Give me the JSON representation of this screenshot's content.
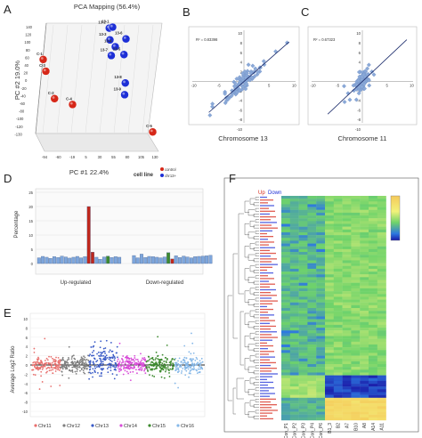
{
  "panels": {
    "A": {
      "letter": "A",
      "title": "PCA Mapping (56.4%)",
      "xlabel": "PC #1 22.4%",
      "ylabel": "PC #2 19.0%",
      "yticks": [
        "140",
        "120",
        "100",
        "80",
        "60",
        "40",
        "20",
        "0",
        "-20",
        "-40",
        "-60",
        "-80",
        "-100",
        "-120",
        "-130"
      ],
      "xticks": [
        "-94",
        "-60",
        "-19",
        "5",
        "30",
        "55",
        "80",
        "105",
        "130"
      ],
      "legend_title": "cell line",
      "legend_items": [
        {
          "label": "control",
          "color": "#d62718"
        },
        {
          "label": "chr13+",
          "color": "#1d2fd6"
        }
      ],
      "points": [
        {
          "label": "13-2",
          "group": 1,
          "x": 0.17,
          "y": 0.94
        },
        {
          "label": "13-1",
          "group": 1,
          "x": 0.22,
          "y": 0.95
        },
        {
          "label": "13-3",
          "group": 1,
          "x": 0.18,
          "y": 0.82
        },
        {
          "label": "13-6",
          "group": 1,
          "x": 0.42,
          "y": 0.83
        },
        {
          "label": "13-4",
          "group": 1,
          "x": 0.26,
          "y": 0.75
        },
        {
          "label": "13-7",
          "group": 1,
          "x": 0.2,
          "y": 0.66
        },
        {
          "label": "13-5",
          "group": 1,
          "x": 0.39,
          "y": 0.67
        },
        {
          "label": "13-8",
          "group": 1,
          "x": 0.41,
          "y": 0.38
        },
        {
          "label": "13-9",
          "group": 1,
          "x": 0.4,
          "y": 0.26
        },
        {
          "label": "C-1",
          "group": 0,
          "x": -0.82,
          "y": 0.62
        },
        {
          "label": "C-3",
          "group": 0,
          "x": -0.78,
          "y": 0.5
        },
        {
          "label": "C-2",
          "group": 0,
          "x": -0.65,
          "y": 0.22
        },
        {
          "label": "C-4",
          "group": 0,
          "x": -0.38,
          "y": 0.16
        },
        {
          "label": "C-5",
          "group": 0,
          "x": 0.82,
          "y": -0.12
        }
      ]
    },
    "B": {
      "letter": "B",
      "caption": "Chromosome 13",
      "r2": "R² = 0.83398",
      "xticks": [
        "-10",
        "-5",
        "0",
        "5",
        "10"
      ],
      "yticks": [
        "10",
        "8",
        "6",
        "4",
        "2",
        "0",
        "-2",
        "-4",
        "-6",
        "-8",
        "-10"
      ]
    },
    "C": {
      "letter": "C",
      "caption": "Chromosome 11",
      "r2": "R² = 0.67323",
      "xticks": [
        "-10",
        "-5",
        "0",
        "5",
        "10"
      ],
      "yticks": [
        "10",
        "8",
        "6",
        "4",
        "2",
        "0",
        "-2",
        "-4",
        "-6",
        "-8",
        "-10"
      ]
    },
    "D": {
      "letter": "D",
      "ylabel": "Percentage",
      "yticks": [
        "0",
        "5",
        "10",
        "15",
        "20",
        "25"
      ],
      "group_labels": [
        "Up-regulated",
        "Down-regulated"
      ]
    },
    "E": {
      "letter": "E",
      "ylabel": "Average Log2 Ratio",
      "yticks": [
        "-10",
        "-8",
        "-6",
        "-4",
        "-2",
        "0",
        "2",
        "4",
        "6",
        "8",
        "10"
      ],
      "legend": [
        {
          "label": "Chr11",
          "color": "#e8706e"
        },
        {
          "label": "Chr12",
          "color": "#7f7f7f"
        },
        {
          "label": "Chr13",
          "color": "#3a5bc7"
        },
        {
          "label": "Chr14",
          "color": "#d84bd8"
        },
        {
          "label": "Chr15",
          "color": "#3d8a2f"
        },
        {
          "label": "Chr16",
          "color": "#86b8e8"
        }
      ]
    },
    "F": {
      "letter": "F",
      "up_label": "Up",
      "down_label": "Down",
      "columns": [
        "Con_P1",
        "Con_P2",
        "Con_P3",
        "Con_P4",
        "Con_P6",
        "B1_3",
        "B2",
        "A7",
        "B10",
        "A8",
        "A14",
        "A11"
      ]
    }
  },
  "chart_data": [
    {
      "type": "bar",
      "panel": "D",
      "ylabel": "Percentage",
      "ylim": [
        0,
        25
      ],
      "series": [
        {
          "name": "",
          "values": [
            2.0,
            2.5,
            2.2,
            1.8,
            2.4,
            2.1,
            2.6,
            2.3,
            1.9,
            2.2,
            2.5,
            2.0,
            2.4,
            20.0,
            4.0,
            2.2,
            1.5,
            2.3,
            2.6,
            2.1,
            2.4,
            2.2,
            2.8,
            2.0,
            3.3,
            2.1,
            2.5,
            2.4,
            2.2,
            2.0,
            2.3,
            3.8,
            1.6,
            2.7,
            2.1,
            2.6,
            2.3,
            2.0,
            2.4,
            2.5,
            2.6,
            2.7,
            2.9
          ]
        }
      ],
      "bar_colors": {
        "13": "#c0271c",
        "14": "#c0271c",
        "18": "#3d8a2f",
        "31": "#3d8a2f",
        "32": "#c0271c"
      }
    }
  ]
}
